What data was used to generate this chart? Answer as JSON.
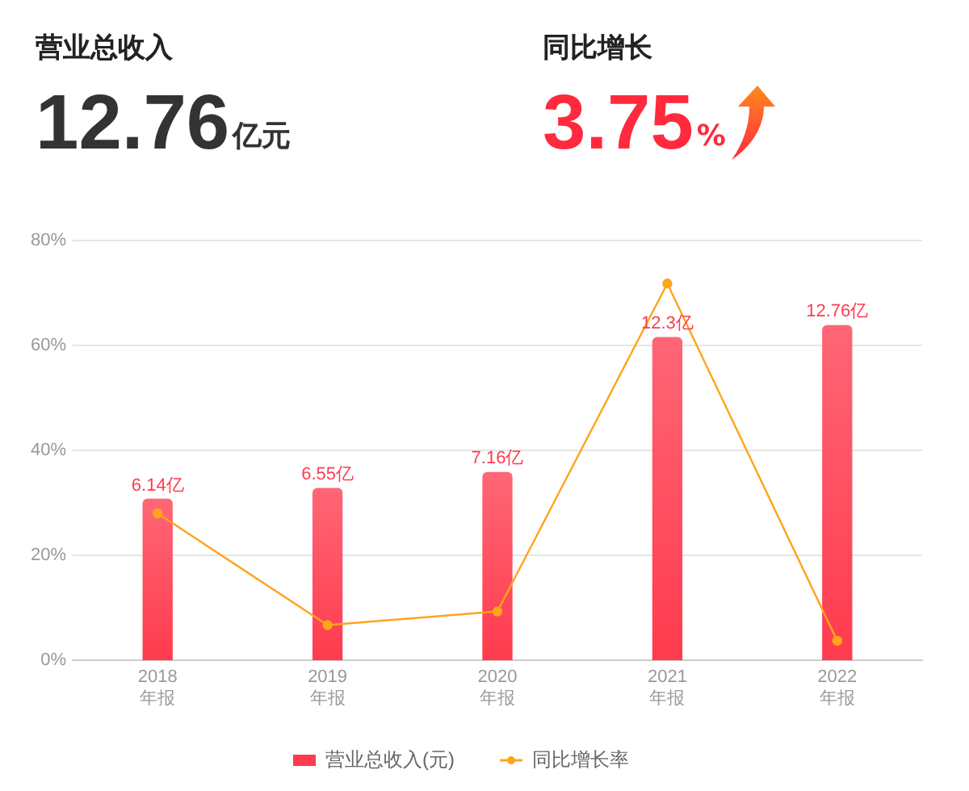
{
  "chart_data": {
    "type": "bar",
    "annotations": [
      "营业总收入",
      "12.76亿元",
      "同比增长",
      "3.75%"
    ],
    "categories": [
      "2018\n年报",
      "2019\n年报",
      "2020\n年报",
      "2021\n年报",
      "2022\n年报"
    ],
    "series": [
      {
        "name": "营业总收入(元)",
        "axis": "y2",
        "color": "#ff3b4e",
        "values": [
          6.14,
          6.55,
          7.16,
          12.3,
          12.76
        ],
        "value_labels": [
          "6.14亿",
          "6.55亿",
          "7.16亿",
          "12.3亿",
          "12.76亿"
        ]
      },
      {
        "name": "同比增长率",
        "type": "line",
        "color": "#ffa41b",
        "marker": "circle",
        "values": [
          28,
          6.7,
          9.3,
          71.8,
          3.7
        ]
      }
    ],
    "ylim": [
      0,
      80
    ],
    "yticks": [
      {
        "value": 0,
        "label": "0%"
      },
      {
        "value": 20,
        "label": "20%"
      },
      {
        "value": 40,
        "label": "40%"
      },
      {
        "value": 60,
        "label": "60%"
      },
      {
        "value": 80,
        "label": "80%"
      }
    ],
    "y2lim": [
      0,
      16
    ],
    "grid": "y",
    "legend": "bottom"
  }
}
